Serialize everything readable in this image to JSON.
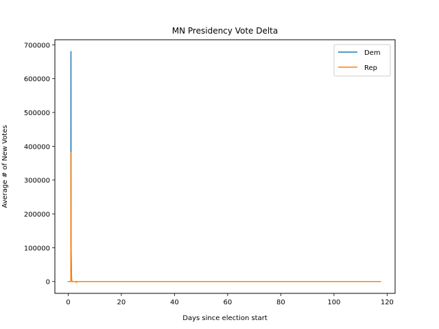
{
  "chart_data": {
    "type": "line",
    "title": "MN Presidency Vote Delta",
    "xlabel": "Days since election start",
    "ylabel": "Average # of New Votes",
    "xlim": [
      -5,
      123
    ],
    "ylim": [
      -35000,
      715000
    ],
    "xticks": [
      0,
      20,
      40,
      60,
      80,
      100,
      120
    ],
    "yticks": [
      0,
      100000,
      200000,
      300000,
      400000,
      500000,
      600000,
      700000
    ],
    "xtick_labels": [
      "0",
      "20",
      "40",
      "60",
      "80",
      "100",
      "120"
    ],
    "ytick_labels": [
      "0",
      "100000",
      "200000",
      "300000",
      "400000",
      "500000",
      "600000",
      "700000"
    ],
    "grid": false,
    "legend": "top-right",
    "series": [
      {
        "name": "Dem",
        "color": "#1f77b4",
        "x": [
          0.0,
          1.0,
          1.05,
          1.1,
          1.3,
          1.5,
          2.0,
          3.0,
          3.2,
          10,
          30,
          60,
          90,
          117.5
        ],
        "y": [
          0,
          0,
          680000,
          100000,
          5000,
          0,
          0,
          0,
          0,
          0,
          0,
          0,
          0,
          0
        ]
      },
      {
        "name": "Rep",
        "color": "#ff7f0e",
        "x": [
          0.0,
          1.0,
          1.05,
          1.1,
          1.3,
          1.5,
          2.0,
          3.0,
          3.1,
          3.2,
          10,
          30,
          60,
          90,
          117.5
        ],
        "y": [
          0,
          0,
          382000,
          60000,
          5000,
          0,
          0,
          0,
          -3000,
          0,
          0,
          0,
          0,
          0,
          0
        ]
      }
    ]
  }
}
